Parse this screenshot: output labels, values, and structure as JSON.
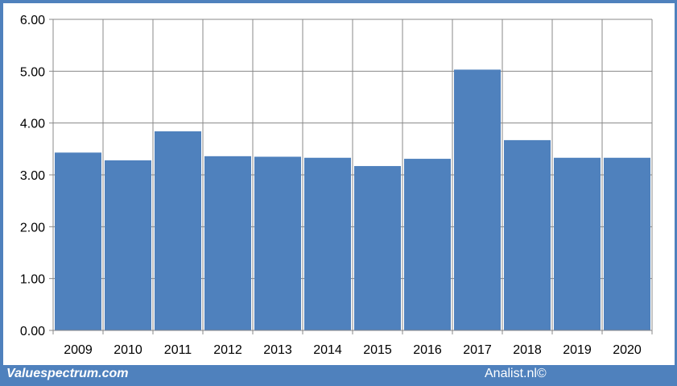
{
  "footer": {
    "brand": "Valuespectrum.com",
    "credit": "Analist.nl©"
  },
  "colors": {
    "bar": "#4f81bd",
    "grid": "#888888",
    "background": "#ffffff",
    "frame": "#4f81bd"
  },
  "chart_data": {
    "type": "bar",
    "categories": [
      "2009",
      "2010",
      "2011",
      "2012",
      "2013",
      "2014",
      "2015",
      "2016",
      "2017",
      "2018",
      "2019",
      "2020"
    ],
    "values": [
      3.43,
      3.28,
      3.84,
      3.36,
      3.35,
      3.33,
      3.17,
      3.31,
      5.03,
      3.67,
      3.33,
      3.33
    ],
    "y_ticks": [
      "0.00",
      "1.00",
      "2.00",
      "3.00",
      "4.00",
      "5.00",
      "6.00"
    ],
    "ylim": [
      0,
      6
    ],
    "title": "",
    "xlabel": "",
    "ylabel": "",
    "grid": true,
    "legend": "none"
  }
}
